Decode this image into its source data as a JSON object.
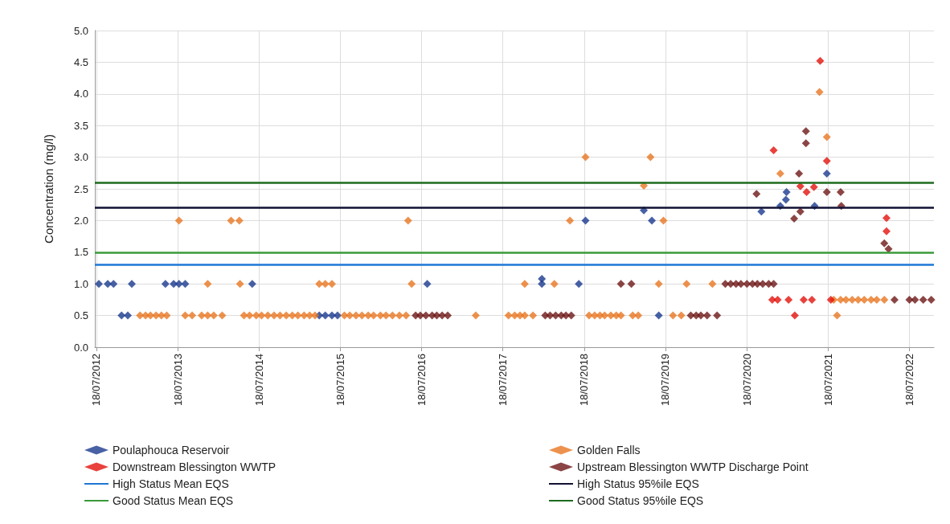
{
  "chart_data": {
    "type": "scatter",
    "ylabel": "Concentration (mg/l)",
    "marker": "diamond",
    "grid": true,
    "legend": "bottom",
    "xlim": [
      "2012-07-11",
      "2022-11-05"
    ],
    "xticks": [
      {
        "value": "2012-07-18",
        "label": "18/07/2012"
      },
      {
        "value": "2013-07-18",
        "label": "18/07/2013"
      },
      {
        "value": "2014-07-18",
        "label": "18/07/2014"
      },
      {
        "value": "2015-07-18",
        "label": "18/07/2015"
      },
      {
        "value": "2016-07-18",
        "label": "18/07/2016"
      },
      {
        "value": "2017-07-18",
        "label": "18/07/2017"
      },
      {
        "value": "2018-07-18",
        "label": "18/07/2018"
      },
      {
        "value": "2019-07-18",
        "label": "18/07/2019"
      },
      {
        "value": "2020-07-18",
        "label": "18/07/2020"
      },
      {
        "value": "2021-07-18",
        "label": "18/07/2021"
      },
      {
        "value": "2022-07-18",
        "label": "18/07/2022"
      }
    ],
    "ylim": [
      0,
      5
    ],
    "yticks": [
      {
        "value": 0,
        "label": "0.0"
      },
      {
        "value": 0.5,
        "label": "0.5"
      },
      {
        "value": 1,
        "label": "1.0"
      },
      {
        "value": 1.5,
        "label": "1.5"
      },
      {
        "value": 2,
        "label": "2.0"
      },
      {
        "value": 2.5,
        "label": "2.5"
      },
      {
        "value": 3,
        "label": "3.0"
      },
      {
        "value": 3.5,
        "label": "3.5"
      },
      {
        "value": 4,
        "label": "4.0"
      },
      {
        "value": 4.5,
        "label": "4.5"
      },
      {
        "value": 5,
        "label": "5.0"
      }
    ],
    "series": [
      {
        "name": "Poulaphouca Reservoir",
        "color": "#1a3a8f",
        "x": [
          "2012-07-29",
          "2012-09-07",
          "2012-10-03",
          "2012-12-24",
          "2013-05-24",
          "2013-06-30",
          "2013-07-24",
          "2013-08-21",
          "2014-06-18",
          "2016-08-12",
          "2018-01-09",
          "2018-01-09",
          "2018-06-24",
          "2012-11-08",
          "2012-12-06",
          "2015-04-15",
          "2015-05-12",
          "2015-06-11",
          "2015-07-06",
          "2019-06-18",
          "2018-07-24",
          "2019-04-12",
          "2019-05-18",
          "2021-01-12",
          "2021-01-09",
          "2020-12-15",
          "2020-09-21",
          "2021-05-18",
          "2021-07-12"
        ],
        "values": [
          1,
          1,
          1,
          1,
          1,
          1,
          1,
          1,
          1,
          1,
          1.08,
          1,
          1,
          0.5,
          0.5,
          0.5,
          0.5,
          0.5,
          0.5,
          0.5,
          2,
          2.16,
          2,
          2.45,
          2.33,
          2.23,
          2.14,
          2.23,
          2.74
        ]
      },
      {
        "name": "Golden Falls",
        "color": "#e87722",
        "x": [
          "2013-07-24",
          "2014-03-15",
          "2014-04-21",
          "2016-05-18",
          "2018-05-15",
          "2019-07-09",
          "2018-07-24",
          "2019-05-12",
          "2019-04-12",
          "2020-12-15",
          "2021-06-09",
          "2021-07-12",
          "2013-11-30",
          "2014-04-24",
          "2015-04-15",
          "2015-05-12",
          "2015-06-11",
          "2016-06-03",
          "2017-10-24",
          "2018-03-06",
          "2019-06-18",
          "2019-10-21",
          "2020-02-14",
          "2013-01-30",
          "2013-02-24",
          "2013-03-18",
          "2013-04-12",
          "2013-05-06",
          "2013-05-30",
          "2013-08-21",
          "2013-09-21",
          "2013-11-03",
          "2013-11-30",
          "2013-12-27",
          "2014-02-03",
          "2014-05-12",
          "2014-06-06",
          "2014-07-06",
          "2014-07-30",
          "2014-08-27",
          "2014-09-24",
          "2014-10-21",
          "2014-11-18",
          "2014-12-15",
          "2015-01-09",
          "2015-02-06",
          "2015-03-03",
          "2015-03-27",
          "2015-08-06",
          "2015-08-30",
          "2015-09-27",
          "2015-10-24",
          "2015-11-21",
          "2015-12-15",
          "2016-01-15",
          "2016-02-09",
          "2016-03-09",
          "2016-04-09",
          "2016-05-09",
          "2017-03-18",
          "2017-08-12",
          "2017-09-09",
          "2017-10-03",
          "2017-10-24",
          "2017-11-30",
          "2018-08-09",
          "2018-09-03",
          "2018-09-27",
          "2018-10-18",
          "2018-11-15",
          "2018-12-09",
          "2018-12-30",
          "2019-02-21",
          "2019-03-18",
          "2019-08-21",
          "2019-09-27",
          "2021-08-12",
          "2021-09-12",
          "2021-10-06",
          "2021-11-03",
          "2021-11-30",
          "2021-12-27",
          "2022-01-27",
          "2022-02-21",
          "2022-03-27",
          "2021-08-27"
        ],
        "values": [
          2,
          2,
          2,
          2,
          2,
          2,
          3,
          3,
          2.55,
          2.74,
          4.03,
          3.32,
          1,
          1,
          1,
          1,
          1,
          1,
          1,
          1,
          1,
          1,
          1,
          0.5,
          0.5,
          0.5,
          0.5,
          0.5,
          0.5,
          0.5,
          0.5,
          0.5,
          0.5,
          0.5,
          0.5,
          0.5,
          0.5,
          0.5,
          0.5,
          0.5,
          0.5,
          0.5,
          0.5,
          0.5,
          0.5,
          0.5,
          0.5,
          0.5,
          0.5,
          0.5,
          0.5,
          0.5,
          0.5,
          0.5,
          0.5,
          0.5,
          0.5,
          0.5,
          0.5,
          0.5,
          0.5,
          0.5,
          0.5,
          0.5,
          0.5,
          0.5,
          0.5,
          0.5,
          0.5,
          0.5,
          0.5,
          0.5,
          0.5,
          0.5,
          0.5,
          0.5,
          0.75,
          0.75,
          0.75,
          0.75,
          0.75,
          0.75,
          0.75,
          0.75,
          0.75,
          0.5
        ]
      },
      {
        "name": "Downstream Blessington WWTP",
        "color": "#e3120b",
        "x": [
          "2021-06-12",
          "2020-11-15",
          "2021-03-15",
          "2021-04-12",
          "2021-05-15",
          "2021-07-12",
          "2022-04-06",
          "2022-04-06",
          "2020-11-09",
          "2020-12-03",
          "2021-01-21",
          "2021-03-30",
          "2021-05-06",
          "2021-07-30",
          "2021-02-18"
        ],
        "values": [
          4.52,
          3.11,
          2.54,
          2.45,
          2.53,
          2.94,
          2.04,
          1.83,
          0.75,
          0.75,
          0.75,
          0.75,
          0.75,
          0.75,
          0.5
        ]
      },
      {
        "name": "Upstream Blessington WWTP Discharge Point",
        "color": "#6e1616",
        "x": [
          "2016-06-21",
          "2016-07-12",
          "2016-08-06",
          "2016-09-03",
          "2016-09-24",
          "2016-10-18",
          "2016-11-12",
          "2018-01-24",
          "2018-02-15",
          "2018-03-12",
          "2018-04-06",
          "2018-04-27",
          "2018-05-21",
          "2018-12-30",
          "2019-02-15",
          "2019-11-09",
          "2019-12-03",
          "2019-12-24",
          "2020-01-21",
          "2020-03-06",
          "2020-04-12",
          "2020-05-06",
          "2020-05-30",
          "2020-06-21",
          "2020-07-18",
          "2020-08-12",
          "2020-09-03",
          "2020-09-27",
          "2020-10-24",
          "2020-11-15",
          "2020-08-30",
          "2021-04-09",
          "2021-04-09",
          "2021-03-09",
          "2021-07-12",
          "2021-09-12",
          "2021-09-15",
          "2021-02-15",
          "2021-03-15",
          "2022-03-27",
          "2022-04-15",
          "2022-05-12",
          "2022-07-18",
          "2022-08-12",
          "2022-09-18",
          "2022-10-24"
        ],
        "values": [
          0.5,
          0.5,
          0.5,
          0.5,
          0.5,
          0.5,
          0.5,
          0.5,
          0.5,
          0.5,
          0.5,
          0.5,
          0.5,
          1,
          1,
          0.5,
          0.5,
          0.5,
          0.5,
          0.5,
          1,
          1,
          1,
          1,
          1,
          1,
          1,
          1,
          1,
          1,
          2.42,
          3.41,
          3.22,
          2.74,
          2.45,
          2.45,
          2.23,
          2.03,
          2.14,
          1.64,
          1.55,
          0.75,
          0.75,
          0.75,
          0.75,
          0.75
        ]
      }
    ],
    "ref_lines": [
      {
        "axis": "y",
        "value": 1.3,
        "label": "High Status Mean EQS",
        "color": "#1f77d4"
      },
      {
        "axis": "y",
        "value": 2.2,
        "label": "High Status 95%ile EQS",
        "color": "#111133"
      },
      {
        "axis": "y",
        "value": 1.5,
        "label": "Good Status Mean EQS",
        "color": "#3a9a3a"
      },
      {
        "axis": "y",
        "value": 2.6,
        "label": "Good Status 95%ile EQS",
        "color": "#1e6b1e"
      }
    ]
  }
}
